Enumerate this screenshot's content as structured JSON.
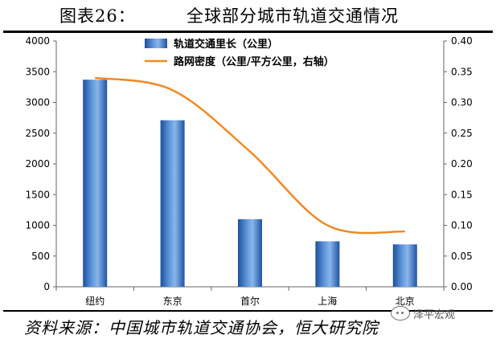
{
  "header": {
    "figure_label": "图表26：",
    "title": "全球部分城市轨道交通情况"
  },
  "source": "资料来源：中国城市轨道交通协会，恒大研究院",
  "watermark": {
    "text": "泽平宏观",
    "icon": "wechat-icon"
  },
  "chart_data": {
    "type": "bar",
    "categories": [
      "纽约",
      "东京",
      "首尔",
      "上海",
      "北京"
    ],
    "series": [
      {
        "name": "轨道交通里长（公里）",
        "type": "bar",
        "axis": "left",
        "values": [
          3370,
          2710,
          1100,
          740,
          690
        ],
        "color": "#2f6cc0"
      },
      {
        "name": "路网密度（公里/平方公里，右轴）",
        "type": "line",
        "axis": "right",
        "values": [
          0.34,
          0.32,
          0.22,
          0.1,
          0.09
        ],
        "color": "#f08a24"
      }
    ],
    "y_left": {
      "min": 0,
      "max": 4000,
      "ticks": [
        "0",
        "500",
        "1000",
        "1500",
        "2000",
        "2500",
        "3000",
        "3500",
        "4000"
      ]
    },
    "y_right": {
      "min": 0,
      "max": 0.4,
      "ticks": [
        "0.00",
        "0.05",
        "0.10",
        "0.15",
        "0.20",
        "0.25",
        "0.30",
        "0.35",
        "0.40"
      ]
    },
    "grid": false,
    "legend_position": "top-center"
  }
}
